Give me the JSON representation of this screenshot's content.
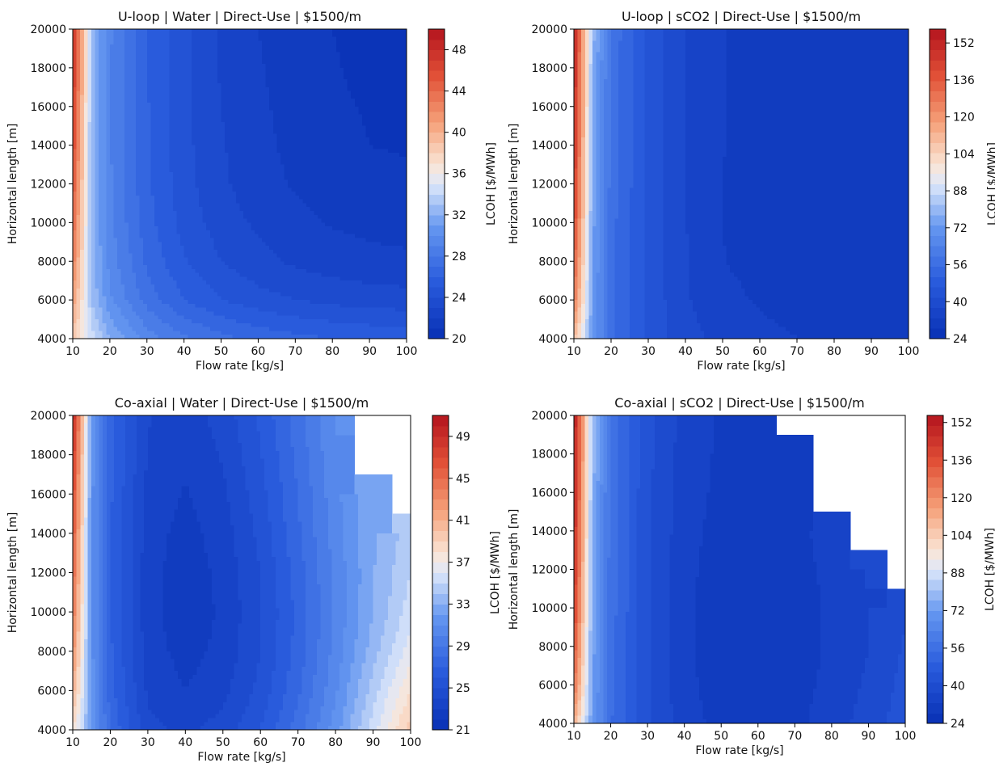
{
  "chart_data": [
    {
      "type": "heatmap",
      "title": "U-loop | Water | Direct-Use | $1500/m",
      "xlabel": "Flow rate [kg/s]",
      "ylabel": "Horizontal length [m]",
      "colorbar_label": "LCOH [$/MWh]",
      "xlim": [
        10,
        100
      ],
      "ylim": [
        4000,
        20000
      ],
      "xticks": [
        "10",
        "20",
        "30",
        "40",
        "50",
        "60",
        "70",
        "80",
        "90",
        "100"
      ],
      "yticks": [
        "4000",
        "6000",
        "8000",
        "10000",
        "12000",
        "14000",
        "16000",
        "18000",
        "20000"
      ],
      "colorbar_range": [
        20,
        50
      ],
      "colorbar_ticks": [
        "20",
        "24",
        "28",
        "32",
        "36",
        "40",
        "44",
        "48"
      ],
      "grid": false,
      "x": [
        10,
        15,
        20,
        30,
        40,
        50,
        60,
        70,
        80,
        90,
        100
      ],
      "y": [
        4000,
        6000,
        8000,
        10000,
        12000,
        14000,
        16000,
        18000,
        20000
      ],
      "z": [
        [
          38.5,
          34.5,
          32.0,
          29.5,
          28.2,
          27.3,
          26.7,
          26.3,
          26.0,
          25.8,
          25.7
        ],
        [
          41.0,
          33.0,
          30.2,
          27.6,
          26.0,
          25.0,
          24.4,
          24.0,
          23.7,
          23.5,
          23.4
        ],
        [
          43.0,
          32.6,
          29.6,
          26.8,
          25.1,
          24.0,
          23.3,
          22.8,
          22.5,
          22.3,
          22.2
        ],
        [
          44.5,
          32.4,
          29.3,
          26.4,
          24.6,
          23.5,
          22.8,
          22.3,
          21.9,
          21.7,
          21.6
        ],
        [
          45.5,
          32.4,
          29.2,
          26.2,
          24.4,
          23.2,
          22.4,
          21.9,
          21.6,
          21.3,
          21.2
        ],
        [
          46.5,
          32.5,
          29.1,
          26.1,
          24.3,
          23.1,
          22.3,
          21.7,
          21.3,
          21.0,
          20.9
        ],
        [
          47.2,
          32.6,
          29.1,
          26.1,
          24.2,
          23.0,
          22.2,
          21.6,
          21.2,
          20.9,
          20.7
        ],
        [
          47.8,
          32.7,
          29.1,
          26.0,
          24.2,
          22.9,
          22.1,
          21.5,
          21.1,
          20.7,
          20.5
        ],
        [
          48.3,
          32.8,
          29.2,
          26.0,
          24.2,
          22.9,
          22.0,
          21.4,
          21.0,
          20.6,
          20.4
        ]
      ]
    },
    {
      "type": "heatmap",
      "title": "U-loop | sCO2 | Direct-Use | $1500/m",
      "xlabel": "Flow rate [kg/s]",
      "ylabel": "Horizontal length [m]",
      "colorbar_label": "LCOH [$/MWh]",
      "xlim": [
        10,
        100
      ],
      "ylim": [
        4000,
        20000
      ],
      "xticks": [
        "10",
        "20",
        "30",
        "40",
        "50",
        "60",
        "70",
        "80",
        "90",
        "100"
      ],
      "yticks": [
        "4000",
        "6000",
        "8000",
        "10000",
        "12000",
        "14000",
        "16000",
        "18000",
        "20000"
      ],
      "colorbar_range": [
        24,
        158
      ],
      "colorbar_ticks": [
        "24",
        "40",
        "56",
        "72",
        "88",
        "104",
        "120",
        "136",
        "152"
      ],
      "grid": false,
      "x": [
        10,
        15,
        20,
        30,
        40,
        50,
        60,
        70,
        80,
        90,
        100
      ],
      "y": [
        4000,
        6000,
        8000,
        10000,
        12000,
        14000,
        16000,
        18000,
        20000
      ],
      "z": [
        [
          112,
          72,
          57,
          45,
          39,
          36,
          34,
          33,
          32.8,
          32.5,
          32.6
        ],
        [
          128,
          73,
          57,
          45,
          38,
          34,
          32.5,
          31.5,
          31.2,
          31.0,
          31.1
        ],
        [
          136,
          74,
          57,
          45,
          38,
          33,
          31.8,
          31.0,
          30.6,
          30.3,
          30.5
        ],
        [
          142,
          75,
          57,
          45,
          37.5,
          33,
          31.5,
          30.7,
          30.2,
          29.8,
          29.9
        ],
        [
          146,
          76,
          58,
          45,
          37.5,
          33,
          31.6,
          30.8,
          30.1,
          29.7,
          29.8
        ],
        [
          149,
          77,
          58,
          45,
          37.5,
          33,
          31.7,
          30.9,
          30.2,
          29.8,
          29.9
        ],
        [
          151,
          78,
          58,
          45,
          37.5,
          33,
          31.8,
          31.0,
          30.4,
          30.0,
          30.1
        ],
        [
          153,
          79,
          58,
          45,
          37.5,
          33,
          31.9,
          31.1,
          30.6,
          30.2,
          30.3
        ],
        [
          154,
          80,
          59,
          45,
          37.5,
          33,
          32.0,
          31.2,
          30.7,
          30.4,
          30.5
        ]
      ]
    },
    {
      "type": "heatmap",
      "title": "Co-axial | Water | Direct-Use | $1500/m",
      "xlabel": "Flow rate [kg/s]",
      "ylabel": "Horizontal length [m]",
      "colorbar_label": "LCOH [$/MWh]",
      "xlim": [
        10,
        100
      ],
      "ylim": [
        4000,
        20000
      ],
      "xticks": [
        "10",
        "20",
        "30",
        "40",
        "50",
        "60",
        "70",
        "80",
        "90",
        "100"
      ],
      "yticks": [
        "4000",
        "6000",
        "8000",
        "10000",
        "12000",
        "14000",
        "16000",
        "18000",
        "20000"
      ],
      "colorbar_range": [
        21,
        51
      ],
      "colorbar_ticks": [
        "21",
        "25",
        "29",
        "33",
        "37",
        "41",
        "45",
        "49"
      ],
      "grid": false,
      "x": [
        10,
        15,
        20,
        30,
        40,
        50,
        60,
        70,
        80,
        90,
        100
      ],
      "y": [
        4000,
        6000,
        8000,
        10000,
        12000,
        14000,
        16000,
        18000,
        20000
      ],
      "z": [
        [
          38,
          32.0,
          28.0,
          24.3,
          23.8,
          24.4,
          26.0,
          28.5,
          31.5,
          35.5,
          39.5
        ],
        [
          41,
          31.5,
          27.4,
          23.8,
          23.0,
          23.7,
          25.3,
          27.8,
          30.8,
          34.5,
          38.0
        ],
        [
          43,
          31.4,
          27.2,
          23.5,
          22.6,
          23.3,
          25.0,
          27.4,
          30.4,
          33.5,
          36.5
        ],
        [
          44.5,
          31.3,
          27.1,
          23.4,
          22.3,
          23.2,
          24.9,
          27.3,
          30.2,
          33.0,
          35.5
        ],
        [
          45.5,
          31.3,
          27.1,
          23.4,
          22.4,
          23.3,
          25.0,
          27.5,
          30.3,
          32.9,
          35.0
        ],
        [
          46.5,
          31.3,
          27.1,
          23.5,
          22.6,
          23.5,
          25.3,
          27.8,
          30.5,
          32.9,
          34.5
        ],
        [
          47.5,
          31.4,
          27.2,
          23.7,
          22.9,
          23.8,
          25.6,
          28.0,
          30.7,
          32.9,
          null
        ],
        [
          48.5,
          31.5,
          27.3,
          23.9,
          23.2,
          24.1,
          25.9,
          28.3,
          30.9,
          null,
          null
        ],
        [
          50,
          31.6,
          27.4,
          24.1,
          23.5,
          24.4,
          26.2,
          28.6,
          31.0,
          null,
          null
        ]
      ]
    },
    {
      "type": "heatmap",
      "title": "Co-axial | sCO2 | Direct-Use | $1500/m",
      "xlabel": "Flow rate [kg/s]",
      "ylabel": "Horizontal length [m]",
      "colorbar_label": "LCOH [$/MWh]",
      "xlim": [
        10,
        100
      ],
      "ylim": [
        4000,
        20000
      ],
      "xticks": [
        "10",
        "20",
        "30",
        "40",
        "50",
        "60",
        "70",
        "80",
        "90",
        "100"
      ],
      "yticks": [
        "4000",
        "6000",
        "8000",
        "10000",
        "12000",
        "14000",
        "16000",
        "18000",
        "20000"
      ],
      "colorbar_range": [
        24,
        155
      ],
      "colorbar_ticks": [
        "24",
        "40",
        "56",
        "72",
        "88",
        "104",
        "120",
        "136",
        "152"
      ],
      "grid": false,
      "x": [
        10,
        15,
        20,
        30,
        40,
        50,
        60,
        70,
        80,
        90,
        100
      ],
      "y": [
        4000,
        6000,
        8000,
        10000,
        12000,
        14000,
        16000,
        18000,
        20000
      ],
      "z": [
        [
          112,
          72,
          55,
          42,
          35,
          31.0,
          30.5,
          31.5,
          35,
          39,
          44
        ],
        [
          128,
          73,
          56,
          42,
          34,
          30.5,
          30.0,
          31.0,
          34,
          38,
          43
        ],
        [
          136,
          74,
          56,
          42,
          34,
          30.0,
          29.5,
          30.5,
          33.5,
          37,
          42
        ],
        [
          142,
          75,
          57,
          42,
          34,
          30.0,
          29.5,
          30.5,
          33.5,
          37,
          41
        ],
        [
          146,
          76,
          57,
          42,
          34,
          30.5,
          30.0,
          31.0,
          34,
          37.5,
          null
        ],
        [
          149,
          77,
          57,
          42,
          34.5,
          31.0,
          30.5,
          31.5,
          34.5,
          null,
          null
        ],
        [
          151,
          78,
          57,
          42,
          35,
          31.5,
          31.0,
          32.0,
          null,
          null,
          null
        ],
        [
          153,
          79,
          58,
          43,
          35,
          32.0,
          31.5,
          32.5,
          null,
          null,
          null
        ],
        [
          154,
          80,
          58,
          43,
          35.5,
          32.0,
          32.0,
          null,
          null,
          null,
          null
        ]
      ]
    }
  ]
}
